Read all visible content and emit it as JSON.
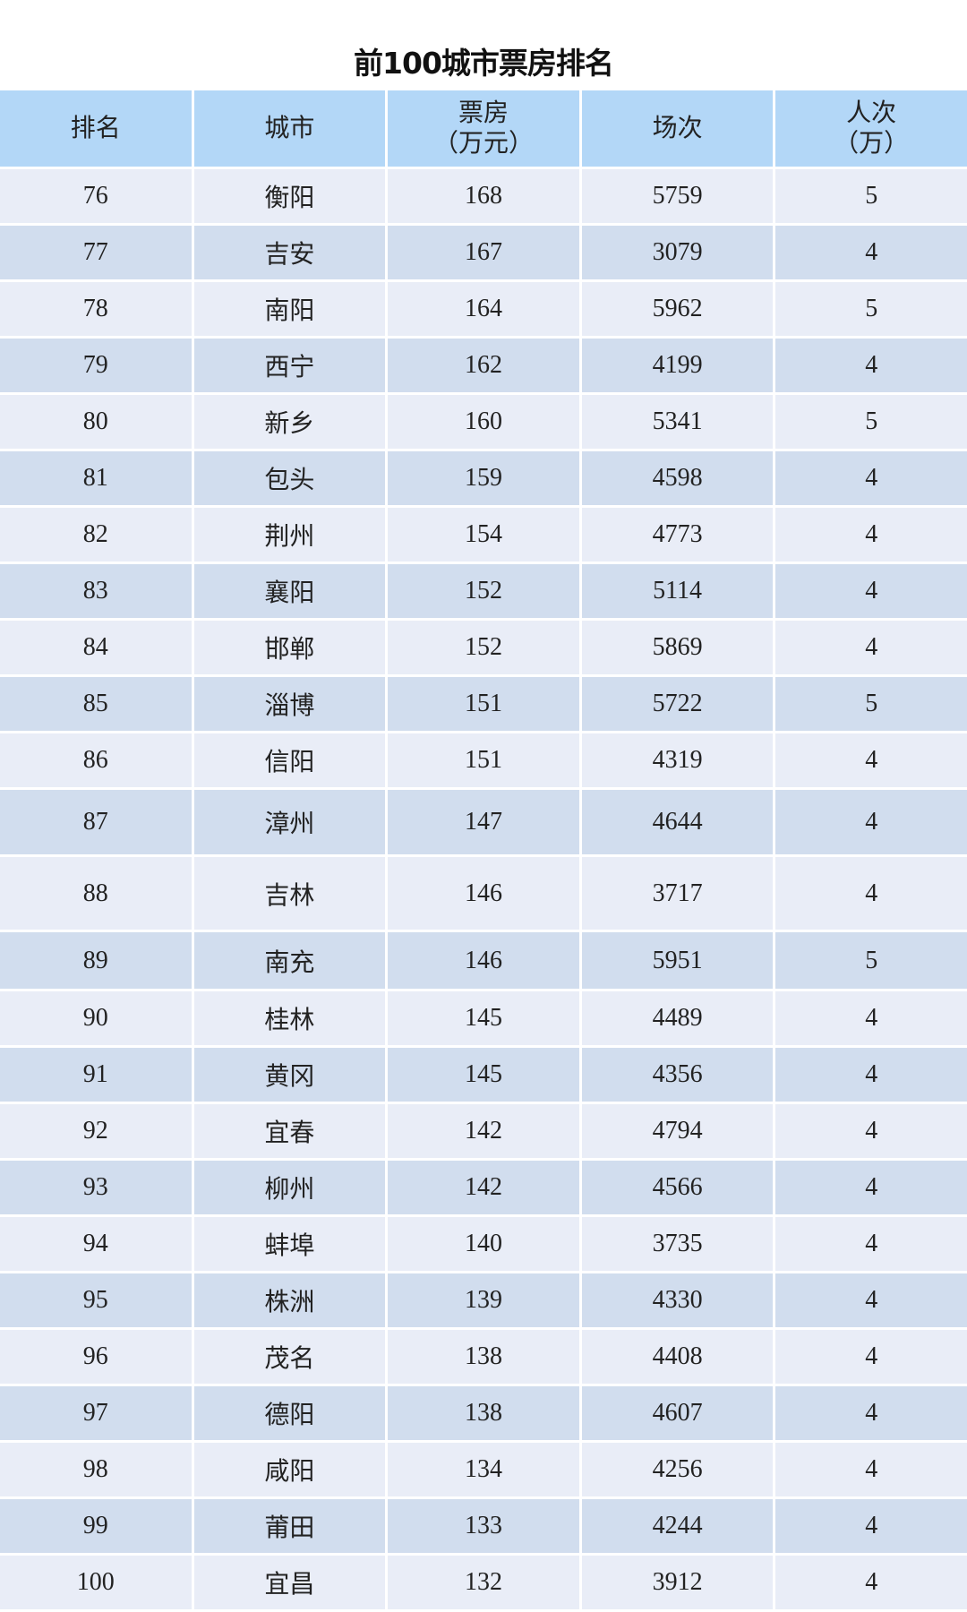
{
  "title": "前100城市票房排名",
  "headers": [
    "排名",
    "城市",
    "票房\n（万元）",
    "场次",
    "人次\n（万）"
  ],
  "header_color": "#b3d7f7",
  "row_colors": [
    "#e9edf7",
    "#d1ddee"
  ],
  "rows": [
    [
      "76",
      "衡阳",
      "168",
      "5759",
      "5"
    ],
    [
      "77",
      "吉安",
      "167",
      "3079",
      "4"
    ],
    [
      "78",
      "南阳",
      "164",
      "5962",
      "5"
    ],
    [
      "79",
      "西宁",
      "162",
      "4199",
      "4"
    ],
    [
      "80",
      "新乡",
      "160",
      "5341",
      "5"
    ],
    [
      "81",
      "包头",
      "159",
      "4598",
      "4"
    ],
    [
      "82",
      "荆州",
      "154",
      "4773",
      "4"
    ],
    [
      "83",
      "襄阳",
      "152",
      "5114",
      "4"
    ],
    [
      "84",
      "邯郸",
      "152",
      "5869",
      "4"
    ],
    [
      "85",
      "淄博",
      "151",
      "5722",
      "5"
    ],
    [
      "86",
      "信阳",
      "151",
      "4319",
      "4"
    ],
    [
      "87",
      "漳州",
      "147",
      "4644",
      "4"
    ],
    [
      "88",
      "吉林",
      "146",
      "3717",
      "4"
    ],
    [
      "89",
      "南充",
      "146",
      "5951",
      "5"
    ],
    [
      "90",
      "桂林",
      "145",
      "4489",
      "4"
    ],
    [
      "91",
      "黄冈",
      "145",
      "4356",
      "4"
    ],
    [
      "92",
      "宜春",
      "142",
      "4794",
      "4"
    ],
    [
      "93",
      "柳州",
      "142",
      "4566",
      "4"
    ],
    [
      "94",
      "蚌埠",
      "140",
      "3735",
      "4"
    ],
    [
      "95",
      "株洲",
      "139",
      "4330",
      "4"
    ],
    [
      "96",
      "茂名",
      "138",
      "4408",
      "4"
    ],
    [
      "97",
      "德阳",
      "138",
      "4607",
      "4"
    ],
    [
      "98",
      "咸阳",
      "134",
      "4256",
      "4"
    ],
    [
      "99",
      "莆田",
      "133",
      "4244",
      "4"
    ],
    [
      "100",
      "宜昌",
      "132",
      "3912",
      "4"
    ]
  ]
}
